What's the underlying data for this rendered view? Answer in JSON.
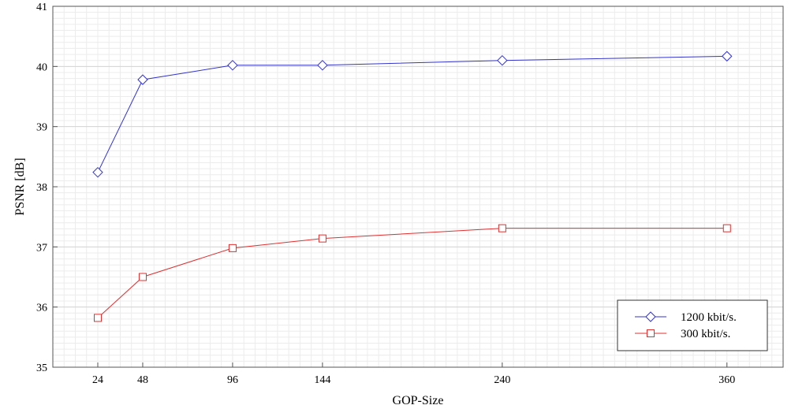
{
  "chart_data": {
    "type": "line",
    "title": "",
    "xlabel": "GOP-Size",
    "ylabel": "PSNR [dB]",
    "x": [
      24,
      48,
      96,
      144,
      240,
      360
    ],
    "x_ticks": [
      "24",
      "48",
      "96",
      "144",
      "240",
      "360"
    ],
    "xlim": [
      0,
      390
    ],
    "y_ticks": [
      "35",
      "36",
      "37",
      "38",
      "39",
      "40",
      "41"
    ],
    "ylim": [
      35,
      41
    ],
    "grid": true,
    "legend_position": "bottom-right",
    "series": [
      {
        "name": "1200 kbit/s.",
        "color": "#3333cc",
        "marker": "diamond",
        "values": [
          38.24,
          39.78,
          40.02,
          40.02,
          40.1,
          40.17
        ]
      },
      {
        "name": "300 kbit/s.",
        "color": "#e03030",
        "marker": "square",
        "values": [
          35.82,
          36.5,
          36.98,
          37.14,
          37.31,
          37.31
        ]
      }
    ]
  }
}
